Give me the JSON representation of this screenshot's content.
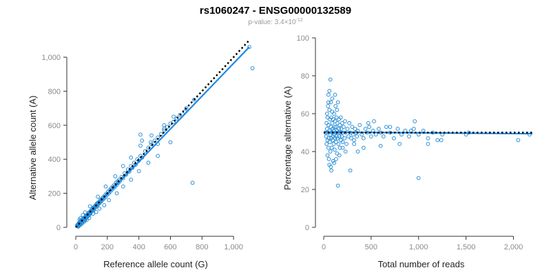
{
  "header": {
    "title": "rs1060247 - ENSG00000132589",
    "pvalue_prefix": "p-value: 3.4×10",
    "pvalue_exp": "-12"
  },
  "colors": {
    "point": "#2b8fd6",
    "fit": "#1e88e5",
    "ref": "#000000",
    "axis": "#333333",
    "tick_text": "#8a8a8a"
  },
  "chart_data": [
    {
      "type": "scatter",
      "id": "left",
      "xlabel": "Reference allele count (G)",
      "ylabel": "Alternative allele count (A)",
      "xlim": [
        0,
        1100
      ],
      "ylim": [
        0,
        1000
      ],
      "xticks": [
        0,
        200,
        400,
        600,
        800,
        1000
      ],
      "xtick_labels": [
        "0",
        "200",
        "400",
        "600",
        "800",
        "1,000"
      ],
      "yticks": [
        0,
        200,
        400,
        600,
        800,
        1000
      ],
      "ytick_labels": [
        "0",
        "200",
        "400",
        "600",
        "800",
        "1,000"
      ],
      "fit_line": {
        "x": [
          0,
          1100
        ],
        "y": [
          0,
          1060
        ]
      },
      "reference_line": {
        "x": [
          0,
          1100
        ],
        "y": [
          0,
          1100
        ]
      },
      "points": [
        [
          8,
          10
        ],
        [
          10,
          14
        ],
        [
          12,
          8
        ],
        [
          14,
          16
        ],
        [
          15,
          12
        ],
        [
          16,
          20
        ],
        [
          18,
          15
        ],
        [
          18,
          22
        ],
        [
          20,
          18
        ],
        [
          20,
          25
        ],
        [
          22,
          14
        ],
        [
          22,
          28
        ],
        [
          24,
          20
        ],
        [
          25,
          30
        ],
        [
          26,
          24
        ],
        [
          28,
          18
        ],
        [
          28,
          32
        ],
        [
          30,
          26
        ],
        [
          30,
          36
        ],
        [
          32,
          22
        ],
        [
          32,
          40
        ],
        [
          34,
          30
        ],
        [
          35,
          34
        ],
        [
          36,
          26
        ],
        [
          38,
          38
        ],
        [
          38,
          44
        ],
        [
          40,
          34
        ],
        [
          40,
          30
        ],
        [
          42,
          46
        ],
        [
          44,
          38
        ],
        [
          45,
          40
        ],
        [
          46,
          50
        ],
        [
          48,
          42
        ],
        [
          50,
          36
        ],
        [
          50,
          52
        ],
        [
          52,
          48
        ],
        [
          54,
          44
        ],
        [
          55,
          58
        ],
        [
          56,
          50
        ],
        [
          58,
          54
        ],
        [
          60,
          46
        ],
        [
          60,
          62
        ],
        [
          62,
          56
        ],
        [
          64,
          60
        ],
        [
          65,
          52
        ],
        [
          66,
          68
        ],
        [
          68,
          62
        ],
        [
          70,
          58
        ],
        [
          70,
          72
        ],
        [
          72,
          66
        ],
        [
          74,
          70
        ],
        [
          75,
          64
        ],
        [
          76,
          78
        ],
        [
          78,
          72
        ],
        [
          80,
          68
        ],
        [
          80,
          84
        ],
        [
          82,
          76
        ],
        [
          84,
          80
        ],
        [
          85,
          74
        ],
        [
          88,
          90
        ],
        [
          90,
          84
        ],
        [
          92,
          80
        ],
        [
          95,
          98
        ],
        [
          96,
          88
        ],
        [
          98,
          92
        ],
        [
          100,
          100
        ],
        [
          102,
          94
        ],
        [
          105,
          108
        ],
        [
          108,
          100
        ],
        [
          110,
          104
        ],
        [
          112,
          116
        ],
        [
          115,
          108
        ],
        [
          118,
          120
        ],
        [
          120,
          114
        ],
        [
          122,
          126
        ],
        [
          125,
          118
        ],
        [
          128,
          130
        ],
        [
          130,
          124
        ],
        [
          132,
          138
        ],
        [
          135,
          128
        ],
        [
          138,
          140
        ],
        [
          140,
          134
        ],
        [
          142,
          146
        ],
        [
          145,
          138
        ],
        [
          150,
          150
        ],
        [
          152,
          144
        ],
        [
          155,
          158
        ],
        [
          158,
          150
        ],
        [
          160,
          164
        ],
        [
          165,
          156
        ],
        [
          170,
          172
        ],
        [
          172,
          164
        ],
        [
          175,
          178
        ],
        [
          180,
          170
        ],
        [
          185,
          188
        ],
        [
          190,
          180
        ],
        [
          195,
          198
        ],
        [
          200,
          192
        ],
        [
          205,
          210
        ],
        [
          210,
          200
        ],
        [
          215,
          220
        ],
        [
          220,
          210
        ],
        [
          225,
          230
        ],
        [
          230,
          222
        ],
        [
          235,
          240
        ],
        [
          240,
          232
        ],
        [
          245,
          250
        ],
        [
          250,
          240
        ],
        [
          255,
          262
        ],
        [
          260,
          250
        ],
        [
          265,
          270
        ],
        [
          270,
          262
        ],
        [
          275,
          280
        ],
        [
          280,
          272
        ],
        [
          290,
          296
        ],
        [
          300,
          288
        ],
        [
          310,
          318
        ],
        [
          320,
          310
        ],
        [
          330,
          340
        ],
        [
          340,
          328
        ],
        [
          350,
          360
        ],
        [
          360,
          350
        ],
        [
          370,
          380
        ],
        [
          380,
          368
        ],
        [
          390,
          400
        ],
        [
          400,
          392
        ],
        [
          410,
          420
        ],
        [
          420,
          410
        ],
        [
          440,
          448
        ],
        [
          460,
          468
        ],
        [
          480,
          488
        ],
        [
          500,
          510
        ],
        [
          520,
          528
        ],
        [
          540,
          548
        ],
        [
          560,
          570
        ],
        [
          580,
          590
        ],
        [
          600,
          610
        ],
        [
          620,
          620
        ],
        [
          640,
          640
        ],
        [
          660,
          660
        ],
        [
          700,
          700
        ],
        [
          750,
          750
        ],
        [
          16,
          4
        ],
        [
          22,
          10
        ],
        [
          30,
          16
        ],
        [
          40,
          22
        ],
        [
          55,
          34
        ],
        [
          70,
          44
        ],
        [
          85,
          56
        ],
        [
          110,
          80
        ],
        [
          130,
          90
        ],
        [
          150,
          110
        ],
        [
          180,
          130
        ],
        [
          210,
          160
        ],
        [
          260,
          200
        ],
        [
          300,
          240
        ],
        [
          350,
          280
        ],
        [
          400,
          330
        ],
        [
          460,
          380
        ],
        [
          520,
          420
        ],
        [
          600,
          500
        ],
        [
          24,
          44
        ],
        [
          30,
          54
        ],
        [
          45,
          72
        ],
        [
          60,
          88
        ],
        [
          90,
          124
        ],
        [
          140,
          180
        ],
        [
          190,
          240
        ],
        [
          250,
          300
        ],
        [
          300,
          360
        ],
        [
          350,
          410
        ],
        [
          410,
          480
        ],
        [
          480,
          540
        ],
        [
          560,
          600
        ],
        [
          410,
          545
        ],
        [
          420,
          510
        ],
        [
          475,
          500
        ],
        [
          520,
          490
        ],
        [
          560,
          580
        ],
        [
          620,
          650
        ],
        [
          690,
          680
        ],
        [
          740,
          262
        ],
        [
          1100,
          1060
        ],
        [
          1120,
          935
        ]
      ]
    },
    {
      "type": "scatter",
      "id": "right",
      "xlabel": "Total number of reads",
      "ylabel": "Percentage alternative (A)",
      "xlim": [
        0,
        2200
      ],
      "ylim": [
        0,
        100
      ],
      "xticks": [
        0,
        500,
        1000,
        1500,
        2000
      ],
      "xtick_labels": [
        "0",
        "500",
        "1,000",
        "1,500",
        "2,000"
      ],
      "yticks": [
        0,
        20,
        40,
        60,
        80,
        100
      ],
      "ytick_labels": [
        "0",
        "20",
        "40",
        "60",
        "80",
        "100"
      ],
      "fit_line": {
        "x": [
          0,
          2200
        ],
        "y": [
          50.3,
          49.4
        ]
      },
      "reference_line": {
        "x": [
          0,
          2200
        ],
        "y": [
          50,
          50
        ]
      },
      "points": [
        [
          20,
          50
        ],
        [
          25,
          48
        ],
        [
          30,
          55
        ],
        [
          30,
          44
        ],
        [
          35,
          52
        ],
        [
          35,
          60
        ],
        [
          40,
          46
        ],
        [
          40,
          58
        ],
        [
          40,
          38
        ],
        [
          45,
          50
        ],
        [
          45,
          64
        ],
        [
          50,
          42
        ],
        [
          50,
          54
        ],
        [
          50,
          70
        ],
        [
          55,
          47
        ],
        [
          55,
          36
        ],
        [
          60,
          51
        ],
        [
          60,
          62
        ],
        [
          60,
          33
        ],
        [
          65,
          45
        ],
        [
          65,
          57
        ],
        [
          70,
          49
        ],
        [
          70,
          40
        ],
        [
          70,
          78
        ],
        [
          75,
          53
        ],
        [
          75,
          66
        ],
        [
          80,
          47
        ],
        [
          80,
          58
        ],
        [
          80,
          30
        ],
        [
          85,
          50
        ],
        [
          85,
          42
        ],
        [
          90,
          55
        ],
        [
          90,
          61
        ],
        [
          95,
          46
        ],
        [
          95,
          52
        ],
        [
          100,
          48
        ],
        [
          100,
          57
        ],
        [
          100,
          35
        ],
        [
          105,
          51
        ],
        [
          105,
          44
        ],
        [
          110,
          60
        ],
        [
          110,
          49
        ],
        [
          115,
          53
        ],
        [
          115,
          41
        ],
        [
          120,
          47
        ],
        [
          120,
          56
        ],
        [
          125,
          50
        ],
        [
          125,
          64
        ],
        [
          130,
          45
        ],
        [
          130,
          53
        ],
        [
          135,
          58
        ],
        [
          135,
          48
        ],
        [
          140,
          51
        ],
        [
          140,
          39
        ],
        [
          145,
          55
        ],
        [
          145,
          47
        ],
        [
          150,
          50
        ],
        [
          150,
          66
        ],
        [
          155,
          44
        ],
        [
          160,
          52
        ],
        [
          160,
          57
        ],
        [
          165,
          48
        ],
        [
          170,
          54
        ],
        [
          170,
          42
        ],
        [
          175,
          50
        ],
        [
          180,
          46
        ],
        [
          180,
          58
        ],
        [
          185,
          52
        ],
        [
          190,
          48
        ],
        [
          195,
          55
        ],
        [
          200,
          50
        ],
        [
          200,
          45
        ],
        [
          210,
          53
        ],
        [
          220,
          47
        ],
        [
          225,
          56
        ],
        [
          230,
          50
        ],
        [
          240,
          44
        ],
        [
          250,
          52
        ],
        [
          260,
          48
        ],
        [
          270,
          55
        ],
        [
          280,
          50
        ],
        [
          290,
          47
        ],
        [
          300,
          53
        ],
        [
          310,
          49
        ],
        [
          320,
          46
        ],
        [
          330,
          52
        ],
        [
          340,
          50
        ],
        [
          350,
          48
        ],
        [
          360,
          51
        ],
        [
          380,
          54
        ],
        [
          400,
          49
        ],
        [
          420,
          47
        ],
        [
          440,
          52
        ],
        [
          460,
          50
        ],
        [
          480,
          53
        ],
        [
          500,
          48
        ],
        [
          520,
          51
        ],
        [
          550,
          49
        ],
        [
          580,
          52
        ],
        [
          600,
          50
        ],
        [
          630,
          48
        ],
        [
          660,
          53
        ],
        [
          700,
          50
        ],
        [
          740,
          47
        ],
        [
          780,
          52
        ],
        [
          820,
          49
        ],
        [
          860,
          51
        ],
        [
          900,
          48
        ],
        [
          950,
          52
        ],
        [
          1000,
          49
        ],
        [
          1050,
          51
        ],
        [
          1100,
          47
        ],
        [
          1150,
          50
        ],
        [
          1200,
          46
        ],
        [
          1250,
          49
        ],
        [
          60,
          72
        ],
        [
          90,
          68
        ],
        [
          120,
          70
        ],
        [
          140,
          62
        ],
        [
          50,
          66
        ],
        [
          75,
          32
        ],
        [
          110,
          34
        ],
        [
          130,
          36
        ],
        [
          165,
          38
        ],
        [
          150,
          22
        ],
        [
          200,
          42
        ],
        [
          230,
          40
        ],
        [
          280,
          30
        ],
        [
          320,
          44
        ],
        [
          360,
          40
        ],
        [
          420,
          42
        ],
        [
          470,
          55
        ],
        [
          530,
          56
        ],
        [
          600,
          43
        ],
        [
          700,
          53
        ],
        [
          800,
          44
        ],
        [
          920,
          51
        ],
        [
          960,
          56
        ],
        [
          1000,
          26
        ],
        [
          1100,
          44
        ],
        [
          1240,
          46
        ],
        [
          1500,
          49
        ],
        [
          1530,
          50
        ],
        [
          2050,
          46
        ],
        [
          2170,
          49
        ]
      ]
    }
  ]
}
